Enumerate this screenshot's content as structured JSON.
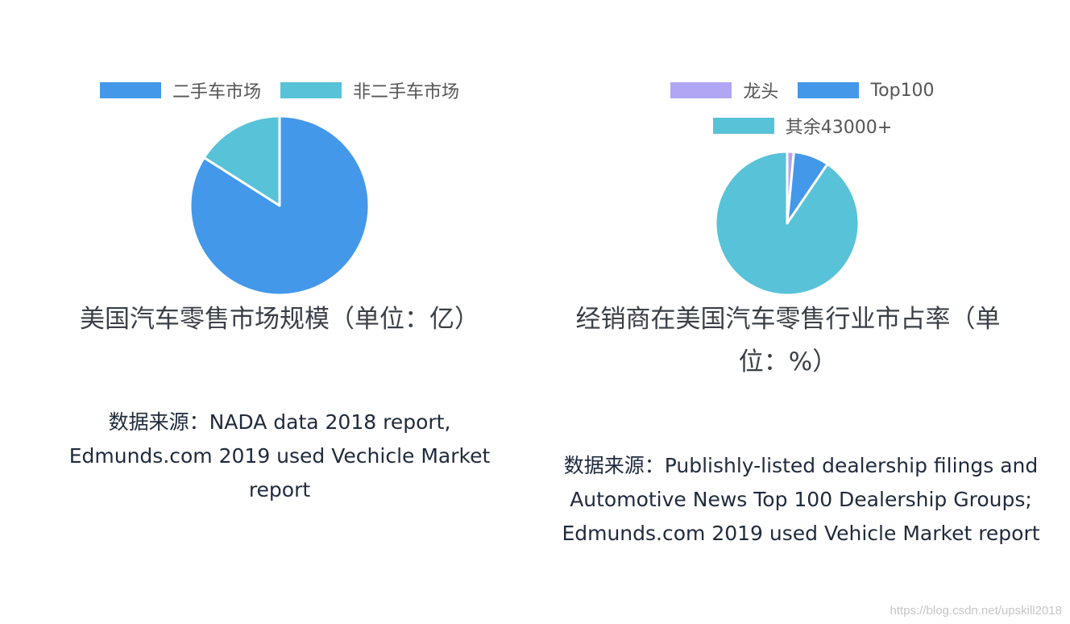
{
  "chart_data": [
    {
      "type": "pie",
      "title": "美国汽车零售市场规模（单位：亿）",
      "legend_position": "top",
      "categories": [
        "二手车市场",
        "非二手车市场"
      ],
      "values": [
        84,
        16
      ],
      "colors": [
        "#4398ea",
        "#58c2d8"
      ]
    },
    {
      "type": "pie",
      "title": "经销商在美国汽车零售行业市占率（单位：%）",
      "legend_position": "top",
      "categories": [
        "龙头",
        "Top100",
        "其余43000+"
      ],
      "values": [
        1.5,
        8,
        90.5
      ],
      "colors": [
        "#b1a6f4",
        "#4398ea",
        "#58c2d8"
      ]
    }
  ],
  "sources": [
    "数据来源：NADA data 2018 report, Edmunds.com 2019 used Vechicle Market report",
    "数据来源：Publishly-listed dealership filings and Automotive News Top 100 Dealership Groups; Edmunds.com 2019 used Vehicle Market report"
  ],
  "watermark": "https://blog.csdn.net/upskill2018"
}
